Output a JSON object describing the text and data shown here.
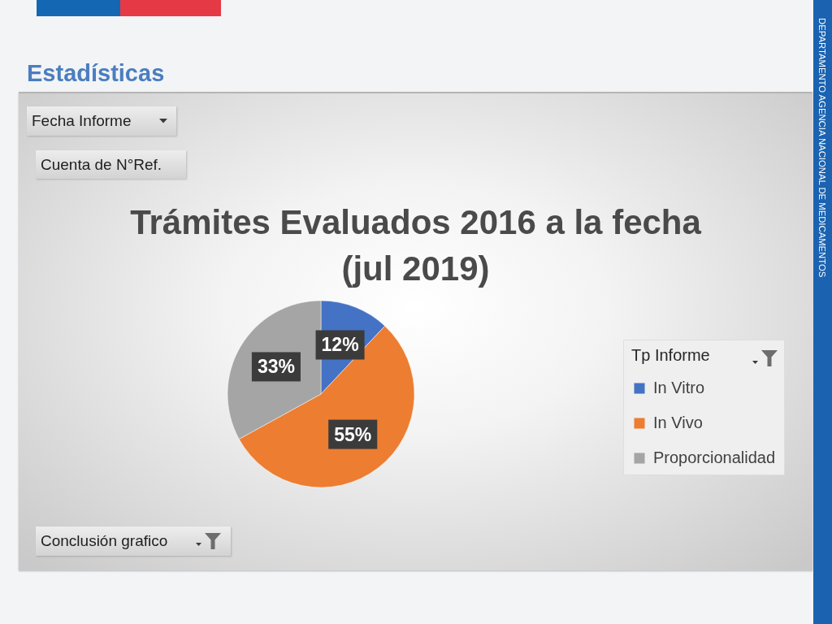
{
  "chart_data": {
    "type": "pie",
    "title": "Trámites Evaluados 2016 a la fecha\n(jul 2019)",
    "legend_title": "Tp Informe",
    "legend": "right",
    "categories": [
      "In Vitro",
      "In Vivo",
      "Proporcionalidad"
    ],
    "values": [
      12,
      55,
      33
    ],
    "colors": [
      "#4472c4",
      "#ed7d31",
      "#a5a5a5"
    ],
    "value_labels": [
      "12%",
      "55%",
      "33%"
    ],
    "annotations": [
      "Estadísticas",
      "Fecha Informe",
      "Cuenta de N°Ref.",
      "Conclusión grafico",
      "DEPARTAMENTO AGENCIA NACIONAL DE MEDICAMENTOS"
    ]
  }
}
